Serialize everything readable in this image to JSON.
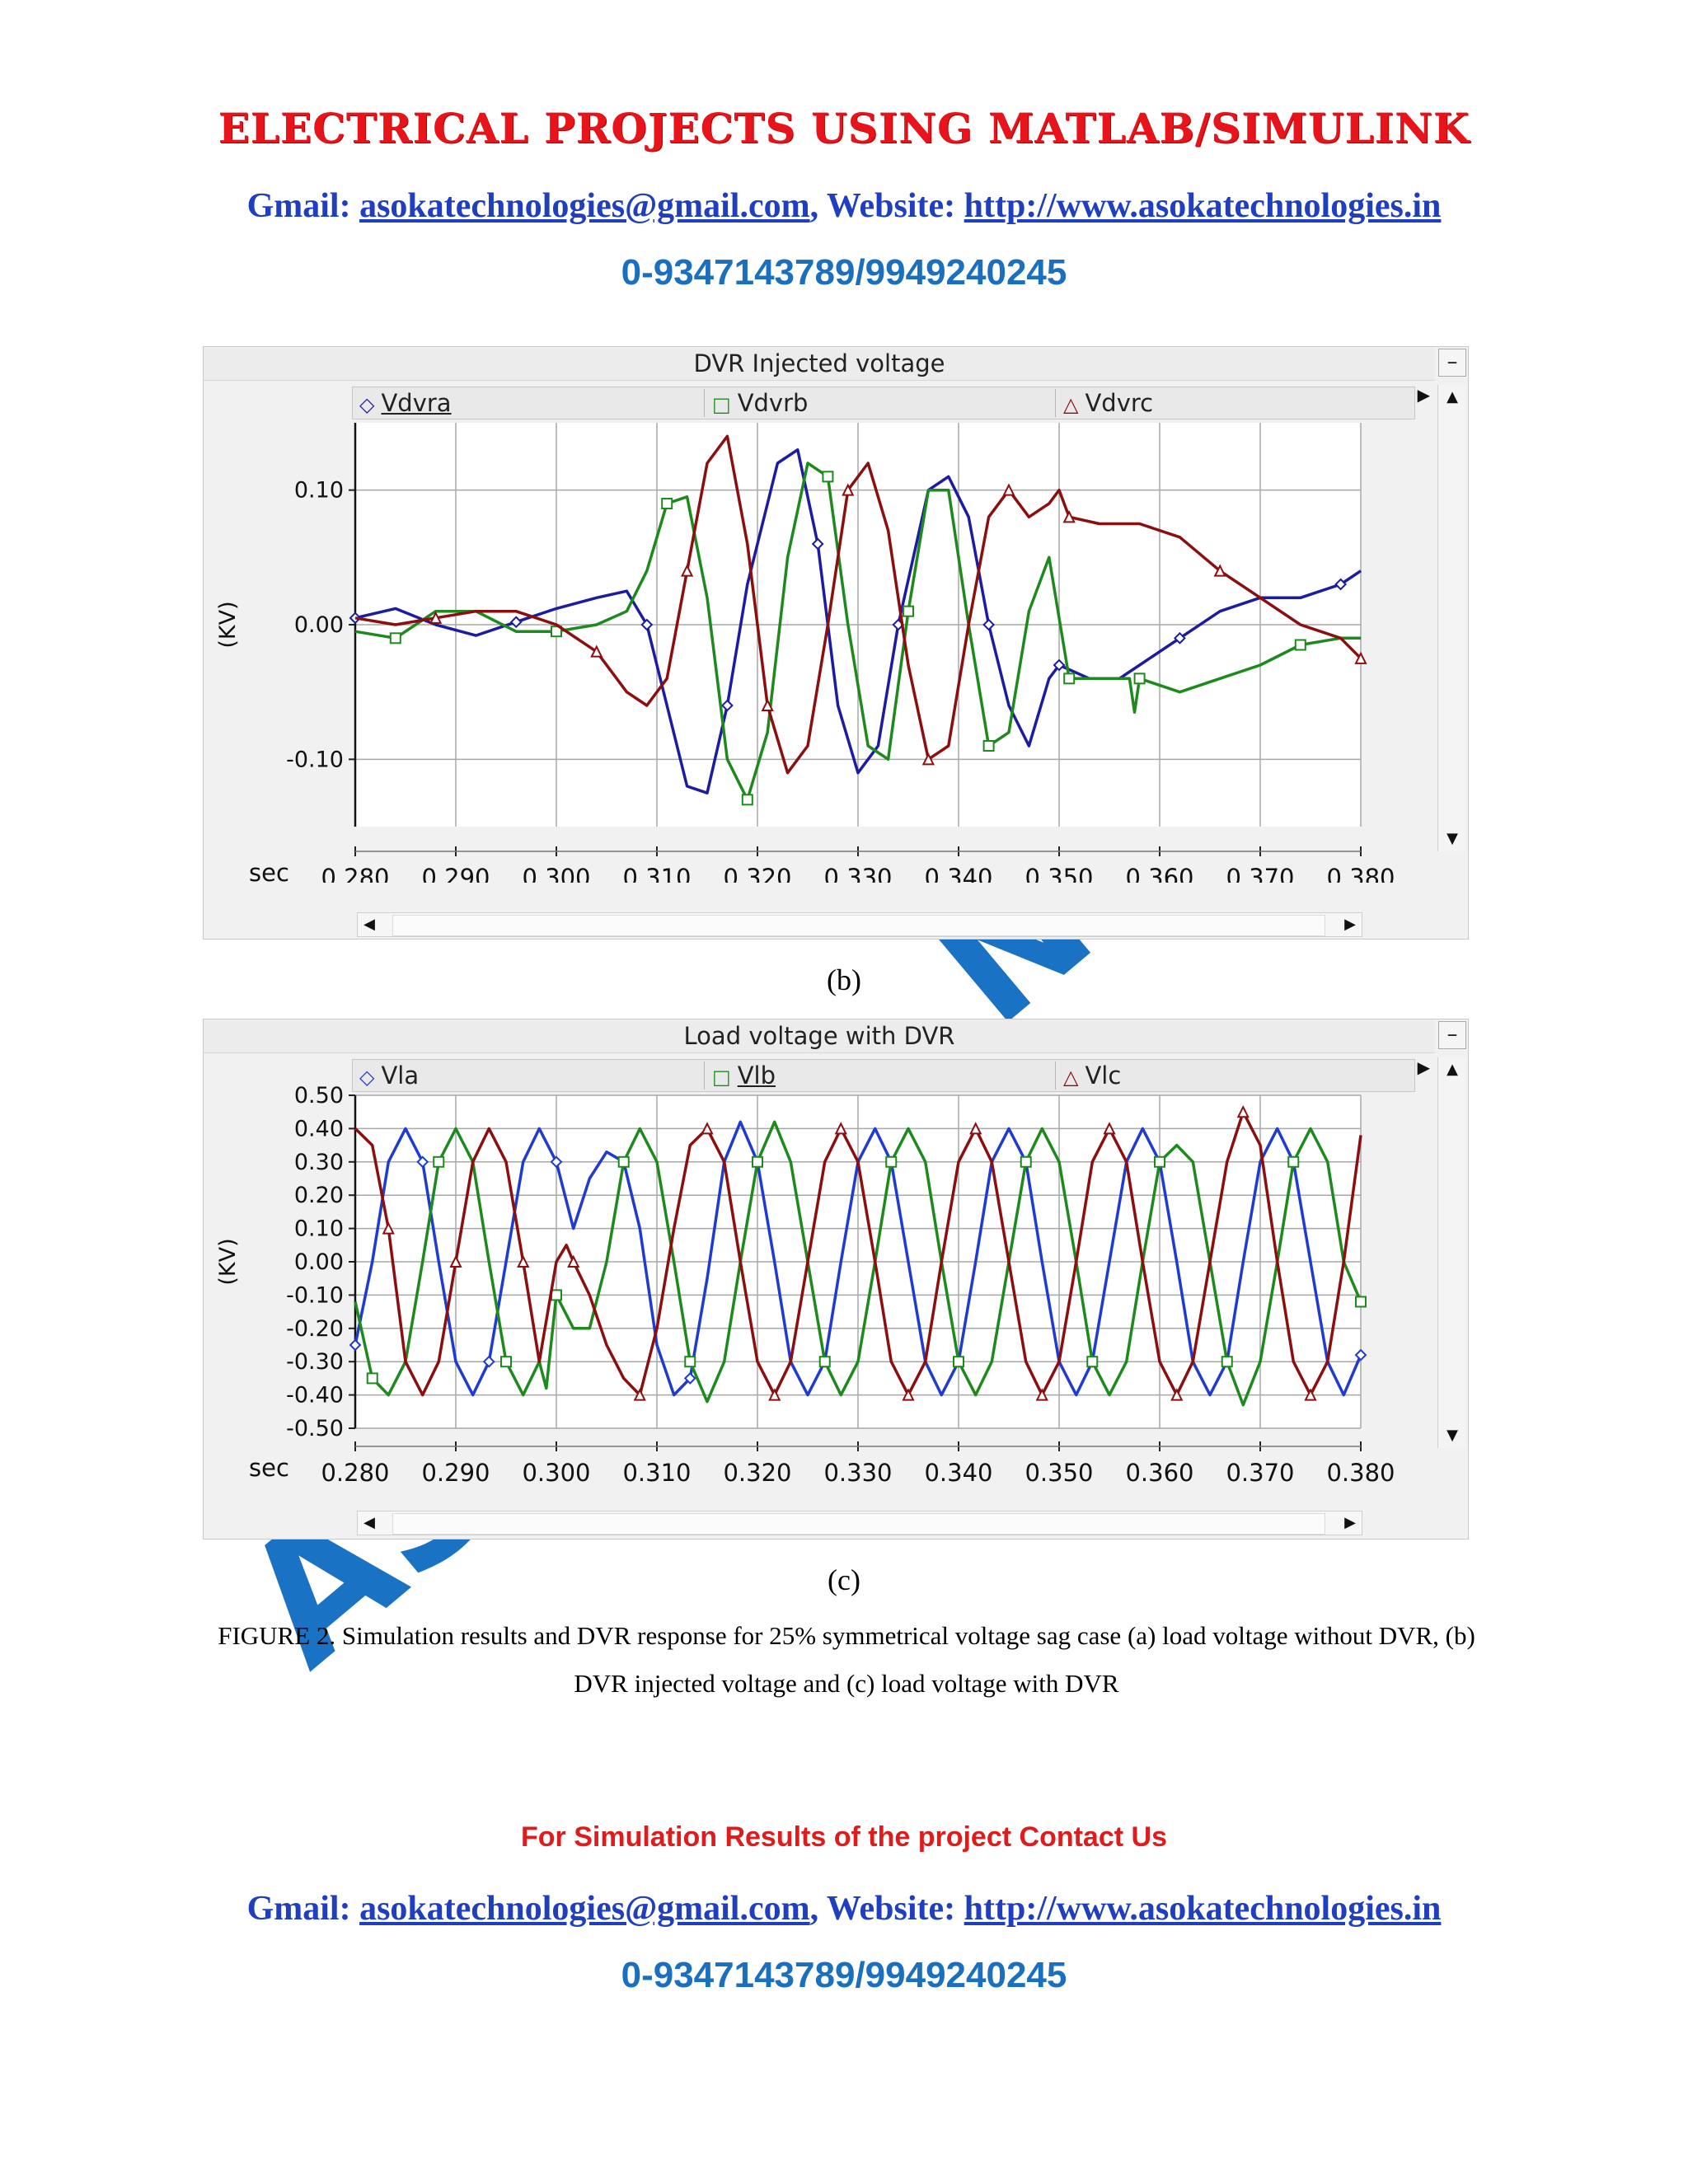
{
  "header": {
    "title": "ELECTRICAL PROJECTS USING MATLAB/SIMULINK",
    "gmail_label": "Gmail:",
    "email": "asokatechnologies@gmail.com",
    "website_label": "Website:",
    "website": "http://www.asokatechnologies.in",
    "phone": "0-9347143789/9949240245"
  },
  "watermark": {
    "text_top": "N",
    "text_bottom": "AS"
  },
  "figure_b": {
    "caption": "(b)",
    "chart_data": {
      "type": "line",
      "title": "DVR Injected voltage",
      "xlabel": "sec",
      "ylabel": "(KV)",
      "xlim": [
        0.28,
        0.38
      ],
      "ylim": [
        -0.15,
        0.15
      ],
      "x_ticks": [
        "0.280",
        "0.290",
        "0.300",
        "0.310",
        "0.320",
        "0.330",
        "0.340",
        "0.350",
        "0.360",
        "0.370",
        "0.380"
      ],
      "y_ticks": [
        "0.10",
        "0.00",
        "-0.10"
      ],
      "grid": true,
      "legend_position": "top",
      "series": [
        {
          "name": "Vdvra",
          "color": "#1c1ca3",
          "marker": "diamond",
          "x": [
            0.28,
            0.284,
            0.288,
            0.292,
            0.296,
            0.3,
            0.304,
            0.307,
            0.309,
            0.311,
            0.313,
            0.315,
            0.317,
            0.319,
            0.322,
            0.324,
            0.326,
            0.328,
            0.33,
            0.332,
            0.334,
            0.337,
            0.339,
            0.341,
            0.343,
            0.345,
            0.347,
            0.349,
            0.35,
            0.353,
            0.356,
            0.358,
            0.362,
            0.366,
            0.37,
            0.374,
            0.378,
            0.38
          ],
          "y": [
            0.005,
            0.012,
            0.0,
            -0.008,
            0.002,
            0.012,
            0.02,
            0.025,
            0.0,
            -0.06,
            -0.12,
            -0.125,
            -0.06,
            0.03,
            0.12,
            0.13,
            0.06,
            -0.06,
            -0.11,
            -0.09,
            0.0,
            0.1,
            0.11,
            0.08,
            0.0,
            -0.06,
            -0.09,
            -0.04,
            -0.03,
            -0.04,
            -0.04,
            -0.03,
            -0.01,
            0.01,
            0.02,
            0.02,
            0.03,
            0.04
          ]
        },
        {
          "name": "Vdvrb",
          "color": "#1e8a1e",
          "marker": "square",
          "x": [
            0.28,
            0.284,
            0.288,
            0.292,
            0.296,
            0.3,
            0.304,
            0.307,
            0.309,
            0.311,
            0.313,
            0.315,
            0.317,
            0.319,
            0.321,
            0.323,
            0.325,
            0.327,
            0.329,
            0.331,
            0.333,
            0.335,
            0.337,
            0.339,
            0.341,
            0.343,
            0.345,
            0.347,
            0.349,
            0.351,
            0.355,
            0.357,
            0.3575,
            0.358,
            0.362,
            0.366,
            0.37,
            0.374,
            0.378,
            0.38
          ],
          "y": [
            -0.005,
            -0.01,
            0.01,
            0.01,
            -0.005,
            -0.005,
            0.0,
            0.01,
            0.04,
            0.09,
            0.095,
            0.02,
            -0.1,
            -0.13,
            -0.08,
            0.05,
            0.12,
            0.11,
            0.0,
            -0.09,
            -0.1,
            0.01,
            0.1,
            0.1,
            0.0,
            -0.09,
            -0.08,
            0.01,
            0.05,
            -0.04,
            -0.04,
            -0.04,
            -0.065,
            -0.04,
            -0.05,
            -0.04,
            -0.03,
            -0.015,
            -0.01,
            -0.01
          ]
        },
        {
          "name": "Vdvrc",
          "color": "#8b0f0f",
          "marker": "triangle",
          "x": [
            0.28,
            0.284,
            0.288,
            0.292,
            0.296,
            0.3,
            0.304,
            0.307,
            0.309,
            0.311,
            0.313,
            0.315,
            0.317,
            0.319,
            0.321,
            0.323,
            0.325,
            0.327,
            0.329,
            0.331,
            0.333,
            0.335,
            0.337,
            0.339,
            0.341,
            0.343,
            0.345,
            0.347,
            0.349,
            0.35,
            0.351,
            0.354,
            0.358,
            0.362,
            0.366,
            0.37,
            0.374,
            0.378,
            0.38
          ],
          "y": [
            0.005,
            0.0,
            0.005,
            0.01,
            0.01,
            0.0,
            -0.02,
            -0.05,
            -0.06,
            -0.04,
            0.04,
            0.12,
            0.14,
            0.06,
            -0.06,
            -0.11,
            -0.09,
            0.0,
            0.1,
            0.12,
            0.07,
            -0.03,
            -0.1,
            -0.09,
            0.0,
            0.08,
            0.1,
            0.08,
            0.09,
            0.1,
            0.08,
            0.075,
            0.075,
            0.065,
            0.04,
            0.02,
            0.0,
            -0.01,
            -0.025
          ]
        }
      ]
    }
  },
  "figure_c": {
    "caption": "(c)",
    "chart_data": {
      "type": "line",
      "title": "Load voltage with DVR",
      "xlabel": "sec",
      "ylabel": "(KV)",
      "xlim": [
        0.28,
        0.38
      ],
      "ylim": [
        -0.5,
        0.5
      ],
      "x_ticks": [
        "0.280",
        "0.290",
        "0.300",
        "0.310",
        "0.320",
        "0.330",
        "0.340",
        "0.350",
        "0.360",
        "0.370",
        "0.380"
      ],
      "y_ticks": [
        "0.50",
        "0.40",
        "0.30",
        "0.20",
        "0.10",
        "0.00",
        "-0.10",
        "-0.20",
        "-0.30",
        "-0.40",
        "-0.50"
      ],
      "grid": true,
      "legend_position": "top",
      "series": [
        {
          "name": "Vla",
          "color": "#1f3bd1",
          "marker": "diamond",
          "x": [
            0.28,
            0.2817,
            0.2833,
            0.285,
            0.2867,
            0.2883,
            0.29,
            0.2917,
            0.2933,
            0.295,
            0.2967,
            0.2983,
            0.3,
            0.3017,
            0.3033,
            0.305,
            0.3067,
            0.3083,
            0.31,
            0.3117,
            0.3133,
            0.315,
            0.3167,
            0.3183,
            0.32,
            0.3217,
            0.3233,
            0.325,
            0.3267,
            0.3283,
            0.33,
            0.3317,
            0.3333,
            0.335,
            0.3367,
            0.3383,
            0.34,
            0.3417,
            0.3433,
            0.345,
            0.3467,
            0.3483,
            0.35,
            0.3517,
            0.3533,
            0.355,
            0.3567,
            0.3583,
            0.36,
            0.3617,
            0.3633,
            0.365,
            0.3667,
            0.3683,
            0.37,
            0.3717,
            0.3733,
            0.375,
            0.3767,
            0.3783,
            0.38
          ],
          "y": [
            -0.25,
            0.0,
            0.3,
            0.4,
            0.3,
            0.0,
            -0.3,
            -0.4,
            -0.3,
            0.0,
            0.3,
            0.4,
            0.3,
            0.1,
            0.25,
            0.33,
            0.3,
            0.1,
            -0.25,
            -0.4,
            -0.35,
            -0.05,
            0.3,
            0.42,
            0.3,
            0.0,
            -0.3,
            -0.4,
            -0.3,
            0.0,
            0.3,
            0.4,
            0.3,
            0.0,
            -0.3,
            -0.4,
            -0.3,
            0.0,
            0.3,
            0.4,
            0.3,
            0.0,
            -0.3,
            -0.4,
            -0.3,
            0.0,
            0.3,
            0.4,
            0.3,
            0.0,
            -0.3,
            -0.4,
            -0.3,
            0.0,
            0.3,
            0.4,
            0.3,
            0.0,
            -0.3,
            -0.4,
            -0.28
          ]
        },
        {
          "name": "Vlb",
          "color": "#1e8a1e",
          "marker": "square",
          "x": [
            0.28,
            0.2817,
            0.2833,
            0.285,
            0.2867,
            0.2883,
            0.29,
            0.2917,
            0.2933,
            0.295,
            0.2967,
            0.2983,
            0.299,
            0.3,
            0.3017,
            0.3033,
            0.305,
            0.3067,
            0.3083,
            0.31,
            0.3117,
            0.3133,
            0.315,
            0.3167,
            0.3183,
            0.32,
            0.3217,
            0.3233,
            0.325,
            0.3267,
            0.3283,
            0.33,
            0.3317,
            0.3333,
            0.335,
            0.3367,
            0.3383,
            0.34,
            0.3417,
            0.3433,
            0.345,
            0.3467,
            0.3483,
            0.35,
            0.3517,
            0.3533,
            0.355,
            0.3567,
            0.3583,
            0.36,
            0.3617,
            0.3633,
            0.365,
            0.3667,
            0.3683,
            0.37,
            0.3717,
            0.3733,
            0.375,
            0.3767,
            0.3783,
            0.38
          ],
          "y": [
            -0.12,
            -0.35,
            -0.4,
            -0.3,
            0.0,
            0.3,
            0.4,
            0.3,
            0.0,
            -0.3,
            -0.4,
            -0.3,
            -0.38,
            -0.1,
            -0.2,
            -0.2,
            0.0,
            0.3,
            0.4,
            0.3,
            0.0,
            -0.3,
            -0.42,
            -0.3,
            0.0,
            0.3,
            0.42,
            0.3,
            0.0,
            -0.3,
            -0.4,
            -0.3,
            0.0,
            0.3,
            0.4,
            0.3,
            0.0,
            -0.3,
            -0.4,
            -0.3,
            0.0,
            0.3,
            0.4,
            0.3,
            0.0,
            -0.3,
            -0.4,
            -0.3,
            0.0,
            0.3,
            0.35,
            0.3,
            0.0,
            -0.3,
            -0.43,
            -0.3,
            0.0,
            0.3,
            0.4,
            0.3,
            0.0,
            -0.12
          ]
        },
        {
          "name": "Vlc",
          "color": "#8b0f0f",
          "marker": "triangle",
          "x": [
            0.28,
            0.2817,
            0.2833,
            0.285,
            0.2867,
            0.2883,
            0.29,
            0.2917,
            0.2933,
            0.295,
            0.2967,
            0.2983,
            0.3,
            0.301,
            0.3017,
            0.3033,
            0.305,
            0.3067,
            0.3083,
            0.31,
            0.3117,
            0.3133,
            0.315,
            0.3167,
            0.3183,
            0.32,
            0.3217,
            0.3233,
            0.325,
            0.3267,
            0.3283,
            0.33,
            0.3317,
            0.3333,
            0.335,
            0.3367,
            0.3383,
            0.34,
            0.3417,
            0.3433,
            0.345,
            0.3467,
            0.3483,
            0.35,
            0.3517,
            0.3533,
            0.355,
            0.3567,
            0.3583,
            0.36,
            0.3617,
            0.3633,
            0.365,
            0.3667,
            0.3683,
            0.37,
            0.3717,
            0.3733,
            0.375,
            0.3767,
            0.3783,
            0.38
          ],
          "y": [
            0.4,
            0.35,
            0.1,
            -0.3,
            -0.4,
            -0.3,
            0.0,
            0.3,
            0.4,
            0.3,
            0.0,
            -0.3,
            0.0,
            0.05,
            0.0,
            -0.1,
            -0.25,
            -0.35,
            -0.4,
            -0.2,
            0.1,
            0.35,
            0.4,
            0.3,
            0.0,
            -0.3,
            -0.4,
            -0.3,
            0.0,
            0.3,
            0.4,
            0.3,
            0.0,
            -0.3,
            -0.4,
            -0.3,
            0.0,
            0.3,
            0.4,
            0.3,
            0.0,
            -0.3,
            -0.4,
            -0.3,
            0.0,
            0.3,
            0.4,
            0.3,
            0.0,
            -0.3,
            -0.4,
            -0.3,
            0.0,
            0.3,
            0.45,
            0.35,
            0.0,
            -0.3,
            -0.4,
            -0.3,
            0.0,
            0.38
          ]
        }
      ]
    }
  },
  "figure_caption": "FIGURE 2. Simulation results and DVR response for 25% symmetrical voltage sag case (a) load voltage without DVR, (b) DVR injected voltage and (c) load voltage with DVR",
  "footer": {
    "contact_us": "For Simulation Results of the project Contact Us",
    "gmail_label": "Gmail:",
    "email": "asokatechnologies@gmail.com",
    "website_label": "Website:",
    "website": "http://www.asokatechnologies.in",
    "phone": "0-9347143789/9949240245"
  },
  "icons": {
    "collapse": "minus-icon",
    "scroll_up": "triangle-up-icon",
    "scroll_down": "triangle-down-icon",
    "scroll_left": "triangle-left-icon",
    "scroll_right": "triangle-right-icon"
  }
}
